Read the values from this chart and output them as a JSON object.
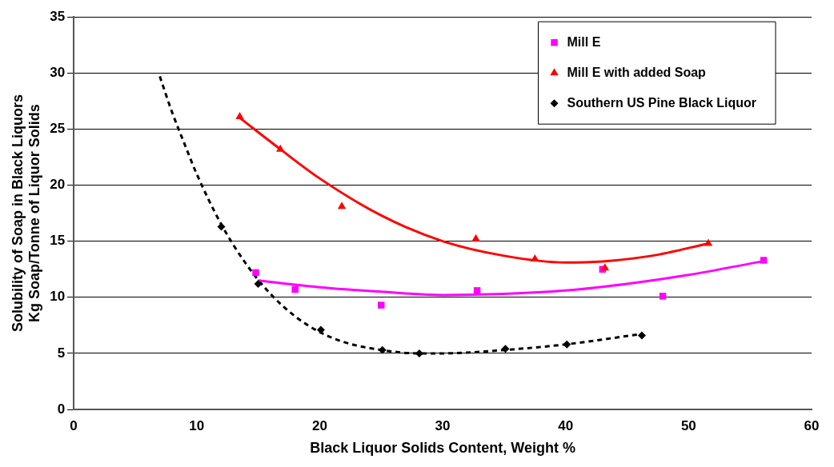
{
  "chart_data": {
    "type": "scatter",
    "xlabel": "Black Liquor Solids Content, Weight %",
    "ylabel": "Solubility of Soap in Black Liquors\nKg Soap/Tonne of Liquor Solids",
    "xlim": [
      0,
      60
    ],
    "xticks": [
      0,
      10,
      20,
      30,
      40,
      50,
      60
    ],
    "ylim": [
      0,
      35
    ],
    "yticks": [
      0,
      5,
      10,
      15,
      20,
      25,
      30,
      35
    ],
    "grid": "y",
    "legend": "top right",
    "series": [
      {
        "name": "Mill E",
        "marker": "square",
        "color": "#ff00ff",
        "x": [
          14.8,
          18.0,
          25.0,
          32.8,
          43.0,
          47.9,
          56.1
        ],
        "values": [
          12.2,
          10.7,
          9.3,
          10.6,
          12.5,
          10.1,
          13.3
        ]
      },
      {
        "name": "Mill E with added Soap",
        "marker": "triangle",
        "color": "#ff0000",
        "x": [
          13.5,
          16.8,
          21.8,
          32.7,
          37.5,
          43.2,
          51.6
        ],
        "values": [
          26.1,
          23.2,
          18.1,
          15.2,
          13.4,
          12.6,
          14.8
        ]
      },
      {
        "name": "Southern US Pine Black Liquor",
        "marker": "diamond",
        "color": "#000000",
        "x": [
          12.0,
          15.0,
          20.1,
          25.1,
          28.1,
          35.1,
          40.1,
          46.2
        ],
        "values": [
          16.3,
          11.2,
          7.1,
          5.3,
          5.0,
          5.4,
          5.8,
          6.6
        ]
      },
      {
        "type": "line",
        "marker": "none",
        "line_style": "solid",
        "color": "#ff00ff",
        "x": [
          15,
          20,
          25,
          30,
          35,
          40,
          45,
          50,
          56
        ],
        "values": [
          11.5,
          10.9,
          10.5,
          10.2,
          10.3,
          10.6,
          11.2,
          12.0,
          13.2
        ]
      },
      {
        "type": "line",
        "marker": "none",
        "line_style": "solid",
        "color": "#ff0000",
        "x": [
          13.5,
          16.8,
          20,
          25,
          30,
          35,
          40,
          43,
          47,
          51.6
        ],
        "values": [
          26.0,
          23.2,
          20.6,
          17.3,
          15.0,
          13.7,
          13.1,
          13.2,
          13.7,
          14.8
        ]
      },
      {
        "type": "line",
        "marker": "none",
        "line_style": "dashed",
        "color": "#000000",
        "x": [
          7,
          8,
          9,
          10,
          12,
          14,
          16,
          18,
          20,
          22,
          25,
          28,
          30,
          35,
          40,
          46
        ],
        "values": [
          29.7,
          26.5,
          23.7,
          21.0,
          16.5,
          13.0,
          10.3,
          8.3,
          6.9,
          6.0,
          5.3,
          5.0,
          5.0,
          5.3,
          5.8,
          6.7
        ]
      }
    ]
  }
}
